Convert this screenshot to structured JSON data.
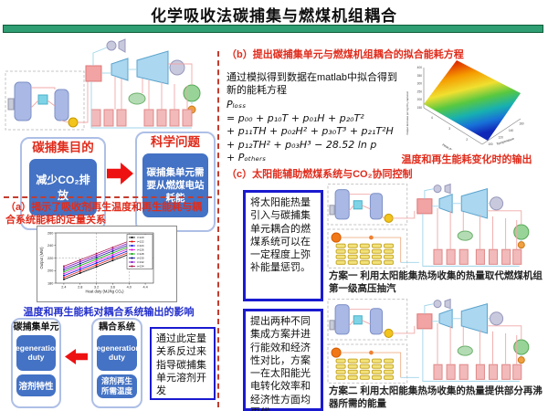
{
  "header": {
    "title": "化学吸收法碳捕集与燃煤机组耦合"
  },
  "left": {
    "purpose": {
      "title": "碳捕集目的",
      "box": "减少CO₂排放"
    },
    "problem": {
      "title": "科学问题",
      "box": "碳捕集单元需要从燃煤电站耗能"
    },
    "section_a": {
      "heading": "（a）揭示了吸收剂再生温度和再生能耗与耦合系统能耗的定量关系",
      "chart_caption": "温度和再生能耗对耦合系统输出的影响"
    },
    "capture_unit": {
      "title": "碳捕集单元",
      "items": [
        "regeneration duty",
        "溶剂特性"
      ]
    },
    "coupled_system": {
      "title": "耦合系统",
      "items": [
        "regeneration duty",
        "溶剂再生所需温度"
      ]
    },
    "guidance_note": "通过此定量关系反过来指导碳捕集单元溶剂开发"
  },
  "right": {
    "section_b": {
      "heading": "（b）提出碳捕集单元与燃煤机组耦合的拟合能耗方程",
      "body": "通过模拟得到数据在matlab中拟合得到新的能耗方程",
      "equation_lines": [
        "Pₗₒₛₛ",
        "= p₀₀ + p₁₀T + p₀₁H + p₂₀T²",
        "+ p₁₁TH + p₀₂H² + p₃₀T³ + p₂₁T²H",
        "+ p₁₂TH² + p₀₃H³ − 28.52 ln p",
        "+ Pₒₜₕₑᵣₛ"
      ],
      "surface_caption": "温度和再生能耗变化时的输出"
    },
    "section_c": {
      "heading": "（c）太阳能辅助燃煤系统与CO₂协同控制",
      "note1": "将太阳能热量引入与碳捕集单元耦合的燃煤系统可以在一定程度上弥补能量惩罚。",
      "note2": "提出两种不同集成方案并进行能效和经济性对比，方案一在太阳能光电转化效率和经济性方面均更优",
      "scheme1_caption": "方案一 利用太阳能集热场收集的热量取代燃煤机组第一级高压抽汽",
      "scheme2_caption": "方案二 利用太阳能集热场收集的热量提供部分再沸器所需的能量"
    }
  },
  "colors": {
    "accent_green": "#2f9e72",
    "heading_red": "#e02c1c",
    "box_blue": "#4472c4",
    "note_border_blue": "#1a1ad0",
    "caption_blue": "#2430cc",
    "dashed_red": "#c43c2e"
  },
  "chart_data": [
    {
      "type": "line",
      "title": "",
      "xlabel": "Heat duty (MJ/kg CO₂)",
      "ylabel": "Output (MW)",
      "x": [
        2.4,
        2.8,
        3.2,
        3.6,
        4.0,
        4.4
      ],
      "xlim": [
        2.2,
        4.6
      ],
      "ylim": [
        180,
        260
      ],
      "y_ticks": [
        180,
        200,
        220,
        240,
        260
      ],
      "grid": "dashed reference lines at x=3.2, x=4.0, y=220",
      "legend_position": "top-right",
      "series": [
        {
          "name": "t=120",
          "color": "#000000",
          "values": [
            186,
            196,
            206,
            216,
            226,
            236
          ]
        },
        {
          "name": "t=122",
          "color": "#e00000",
          "values": [
            189,
            199,
            209,
            219,
            229,
            239
          ]
        },
        {
          "name": "t=124",
          "color": "#0000e0",
          "values": [
            192,
            202,
            212,
            222,
            232,
            242
          ]
        },
        {
          "name": "t=126",
          "color": "#e000e0",
          "values": [
            195,
            205,
            215,
            225,
            235,
            245
          ]
        },
        {
          "name": "t=128",
          "color": "#00a000",
          "values": [
            198,
            208,
            218,
            228,
            238,
            248
          ]
        },
        {
          "name": "t=130",
          "color": "#000080",
          "values": [
            201,
            211,
            221,
            231,
            241,
            251
          ]
        },
        {
          "name": "t=132",
          "color": "#8000c0",
          "values": [
            204,
            214,
            224,
            234,
            244,
            254
          ]
        },
        {
          "name": "t=134",
          "color": "#a00040",
          "values": [
            207,
            217,
            227,
            237,
            247,
            257
          ]
        }
      ]
    },
    {
      "type": "surface",
      "xlabel": "Temperature",
      "ylabel": "Heat duty",
      "zlabel": "Output decrease per kg CO₂ captured",
      "x_ticks": [
        100,
        120,
        140,
        160
      ],
      "y_ticks": [
        2,
        3,
        4
      ],
      "z_ticks": [
        400,
        350,
        300,
        250,
        200,
        150
      ],
      "z_range": [
        150,
        400
      ],
      "colormap": "jet"
    }
  ]
}
